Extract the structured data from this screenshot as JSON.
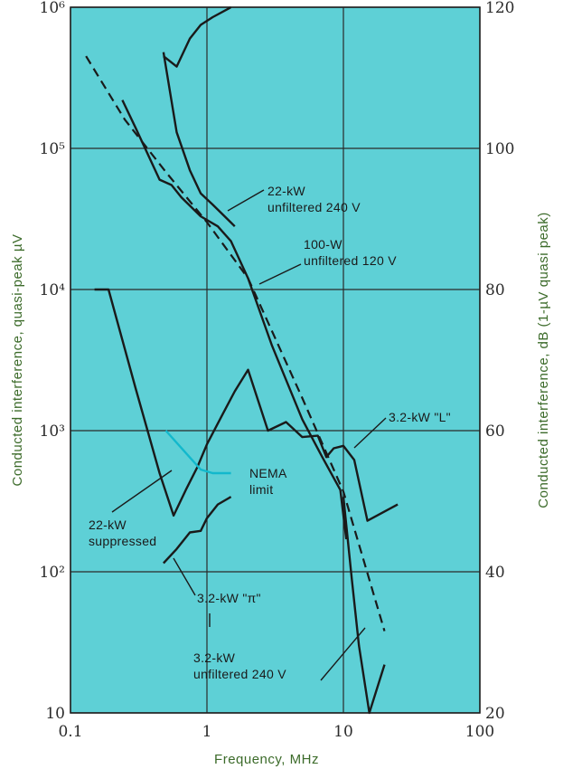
{
  "chart_data": {
    "type": "line",
    "xlabel": "Frequency, MHz",
    "ylabel_left": "Conducted interference, quasi-peak µV",
    "ylabel_right": "Conducted interference, dB (1-µV quasi peak)",
    "x_scale": "log",
    "y_scale": "log",
    "xlim": [
      0.1,
      100
    ],
    "ylim": [
      10,
      1000000
    ],
    "y_right_lim": [
      20,
      120
    ],
    "x_ticks": [
      "0.1",
      "1",
      "10",
      "100"
    ],
    "y_ticks_left": [
      "10",
      "10²",
      "10³",
      "10⁴",
      "10⁵",
      "10⁶"
    ],
    "y_ticks_right": [
      "20",
      "40",
      "60",
      "80",
      "100",
      "120"
    ],
    "grid": true,
    "background": "#5ed0d6",
    "series": [
      {
        "name": "22-kW unfiltered 240 V",
        "style": "solid",
        "color": "#1a1a1a",
        "x": [
          0.48,
          0.6,
          0.75,
          0.9,
          1.1,
          1.6
        ],
        "y": [
          480000,
          130000,
          70000,
          48000,
          40000,
          28000
        ]
      },
      {
        "name": "100-W unfiltered 120 V",
        "style": "solid",
        "color": "#1a1a1a",
        "x": [
          0.24,
          0.3,
          0.45,
          0.55,
          0.65,
          0.9,
          1.2,
          1.5,
          2.0,
          3.0,
          5.0,
          7.0,
          9.5,
          10.5
        ],
        "y": [
          220000,
          140000,
          60000,
          55000,
          45000,
          33000,
          28000,
          22000,
          12000,
          4000,
          1200,
          650,
          380,
          170
        ]
      },
      {
        "name": "3.2-kW \"L\"",
        "style": "solid",
        "color": "#1a1a1a",
        "x": [
          0.15,
          0.19,
          0.3,
          0.45,
          0.57,
          0.7,
          0.85,
          1.0,
          1.3,
          1.6,
          2.0,
          2.8,
          3.8,
          5.0,
          6.5,
          7.5,
          8.5,
          10.0,
          12.0,
          15.0,
          25.0
        ],
        "y": [
          10000,
          10000,
          2000,
          500,
          250,
          380,
          550,
          800,
          1300,
          1900,
          2700,
          1000,
          1150,
          900,
          920,
          650,
          750,
          780,
          620,
          230,
          300
        ]
      },
      {
        "name": "22-kW suppressed",
        "style": "solid",
        "color": "#1a1a1a",
        "x": [
          0.48,
          0.6,
          0.75,
          0.9,
          1.1,
          1.5
        ],
        "y": [
          450000,
          380000,
          600000,
          750000,
          850000,
          1000000
        ]
      },
      {
        "name": "3.2-kW \"π\"",
        "style": "solid",
        "color": "#1a1a1a",
        "x": [
          0.48,
          0.6,
          0.75,
          0.9,
          1.0,
          1.2,
          1.5
        ],
        "y": [
          115,
          145,
          190,
          195,
          240,
          300,
          340
        ]
      },
      {
        "name": "3.2-kW unfiltered 240 V",
        "style": "solid",
        "color": "#1a1a1a",
        "x": [
          10.0,
          11.5,
          13.0,
          15.5,
          20.0
        ],
        "y": [
          340,
          90,
          30,
          10,
          22
        ]
      },
      {
        "name": "dashed reference",
        "style": "dashed",
        "color": "#1a1a1a",
        "x": [
          0.13,
          0.25,
          0.5,
          1.0,
          2.0,
          5.0,
          10.0,
          20.0
        ],
        "y": [
          450000,
          160000,
          68000,
          30000,
          12000,
          1700,
          370,
          38
        ]
      },
      {
        "name": "NEMA limit",
        "style": "solid",
        "color": "#12b8cc",
        "x": [
          0.5,
          0.9,
          1.1,
          1.5
        ],
        "y": [
          1000,
          530,
          500,
          500
        ]
      }
    ],
    "annotations": [
      {
        "lines": [
          "22-kW",
          "unfiltered  240 V"
        ]
      },
      {
        "lines": [
          "100-W",
          "unfiltered  120 V"
        ]
      },
      {
        "lines": [
          "3.2-kW  \"L\""
        ]
      },
      {
        "lines": [
          "NEMA",
          "limit"
        ]
      },
      {
        "lines": [
          "22-kW",
          "suppressed"
        ]
      },
      {
        "lines": [
          "3.2-kW  \"π\""
        ]
      },
      {
        "lines": [
          "3.2-kW",
          "unfiltered  240 V"
        ]
      }
    ]
  }
}
